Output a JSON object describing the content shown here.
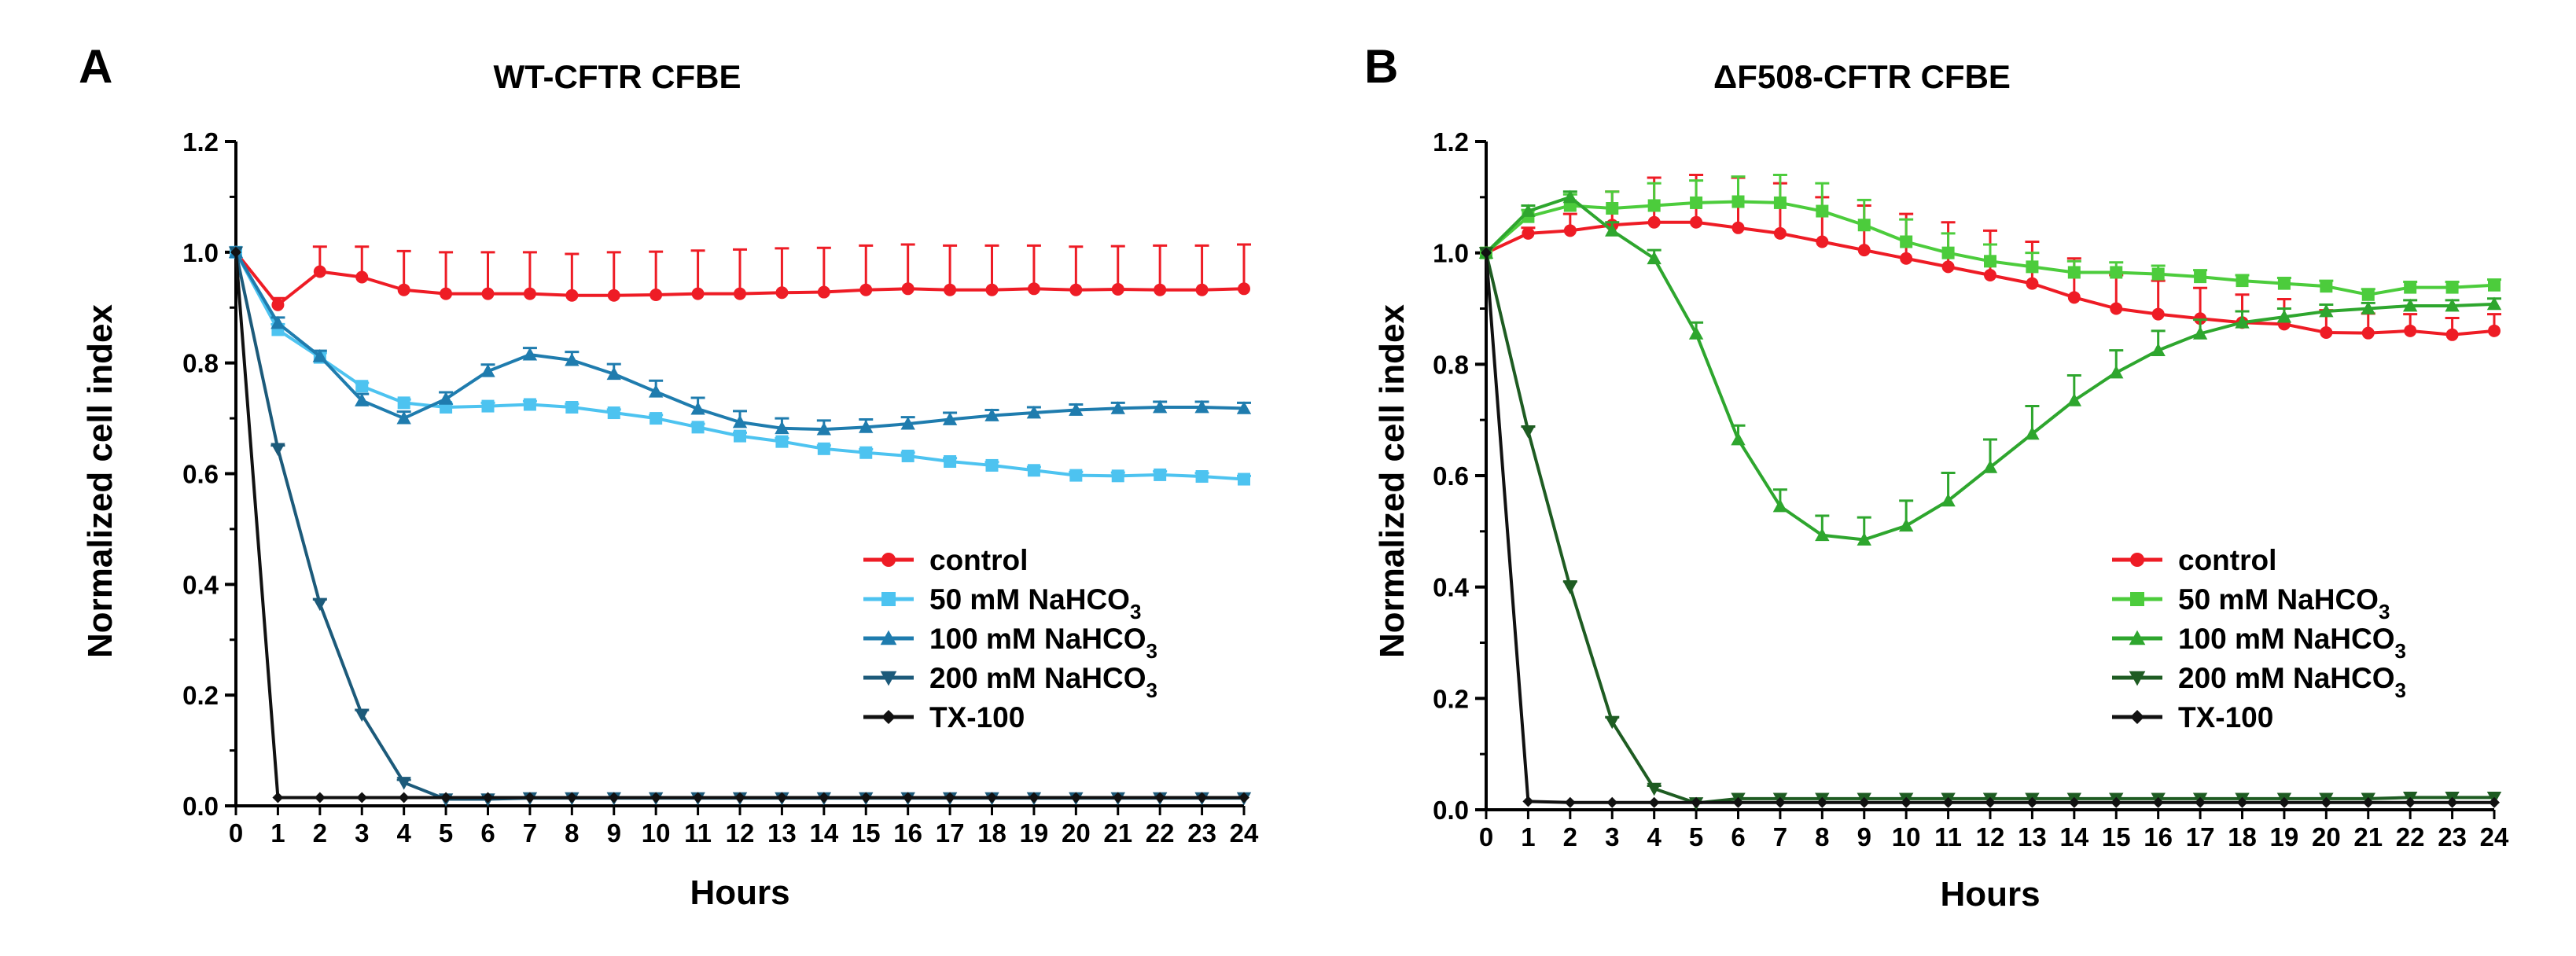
{
  "chart_data": [
    {
      "panel_letter": "A",
      "type": "line",
      "title": "WT-CFTR CFBE",
      "xlabel": "Hours",
      "ylabel": "Normalized cell index",
      "xlim": [
        0,
        24
      ],
      "ylim": [
        0,
        1.2
      ],
      "x": [
        0,
        1,
        2,
        3,
        4,
        5,
        6,
        7,
        8,
        9,
        10,
        11,
        12,
        13,
        14,
        15,
        16,
        17,
        18,
        19,
        20,
        21,
        22,
        23,
        24
      ],
      "x_ticks": [
        "0",
        "1",
        "2",
        "3",
        "4",
        "5",
        "6",
        "7",
        "8",
        "9",
        "10",
        "11",
        "12",
        "13",
        "14",
        "15",
        "16",
        "17",
        "18",
        "19",
        "20",
        "21",
        "22",
        "23",
        "24"
      ],
      "y_ticks": [
        "0.0",
        "0.2",
        "0.4",
        "0.6",
        "0.8",
        "1.0",
        "1.2"
      ],
      "grid": false,
      "legend_position": "bottom-right",
      "series": [
        {
          "name": "control",
          "name_main": "control",
          "name_sub": "",
          "color": "#ee1c25",
          "marker": "circle",
          "values": [
            1.0,
            0.905,
            0.965,
            0.955,
            0.932,
            0.925,
            0.925,
            0.925,
            0.922,
            0.922,
            0.923,
            0.925,
            0.925,
            0.927,
            0.928,
            0.932,
            0.934,
            0.932,
            0.932,
            0.934,
            0.932,
            0.933,
            0.932,
            0.932,
            0.934
          ],
          "errors": [
            0,
            0.012,
            0.045,
            0.055,
            0.07,
            0.075,
            0.075,
            0.075,
            0.075,
            0.078,
            0.078,
            0.078,
            0.08,
            0.08,
            0.08,
            0.08,
            0.08,
            0.08,
            0.08,
            0.078,
            0.078,
            0.078,
            0.08,
            0.08,
            0.08
          ]
        },
        {
          "name": "50 mM NaHCO3",
          "name_main": "50 mM NaHCO",
          "name_sub": "3",
          "color": "#4dc3f0",
          "marker": "square",
          "values": [
            1.0,
            0.86,
            0.81,
            0.758,
            0.728,
            0.72,
            0.722,
            0.725,
            0.72,
            0.71,
            0.7,
            0.684,
            0.668,
            0.658,
            0.645,
            0.638,
            0.632,
            0.622,
            0.615,
            0.606,
            0.597,
            0.596,
            0.598,
            0.595,
            0.59
          ],
          "errors": [
            0,
            0.01,
            0.008,
            0.006,
            0.006,
            0.006,
            0.006,
            0.006,
            0.006,
            0.006,
            0.006,
            0.006,
            0.006,
            0.006,
            0.006,
            0.006,
            0.006,
            0.006,
            0.006,
            0.006,
            0.006,
            0.006,
            0.006,
            0.006,
            0.006
          ]
        },
        {
          "name": "100 mM NaHCO3",
          "name_main": "100 mM NaHCO",
          "name_sub": "3",
          "color": "#1f7cae",
          "marker": "triangle-up",
          "values": [
            1.0,
            0.872,
            0.812,
            0.732,
            0.7,
            0.735,
            0.785,
            0.815,
            0.805,
            0.78,
            0.748,
            0.717,
            0.693,
            0.682,
            0.68,
            0.684,
            0.69,
            0.698,
            0.705,
            0.71,
            0.715,
            0.718,
            0.72,
            0.72,
            0.718
          ],
          "errors": [
            0,
            0.01,
            0.01,
            0.012,
            0.012,
            0.012,
            0.012,
            0.012,
            0.015,
            0.018,
            0.02,
            0.02,
            0.02,
            0.018,
            0.016,
            0.014,
            0.012,
            0.012,
            0.01,
            0.01,
            0.01,
            0.01,
            0.01,
            0.01,
            0.01
          ]
        },
        {
          "name": "200 mM NaHCO3",
          "name_main": "200 mM NaHCO",
          "name_sub": "3",
          "color": "#1c5a7a",
          "marker": "triangle-down",
          "values": [
            1.0,
            0.645,
            0.365,
            0.165,
            0.042,
            0.012,
            0.012,
            0.014,
            0.014,
            0.014,
            0.014,
            0.014,
            0.014,
            0.014,
            0.014,
            0.014,
            0.014,
            0.014,
            0.014,
            0.014,
            0.014,
            0.014,
            0.014,
            0.014,
            0.014
          ],
          "errors": [
            0,
            0.006,
            0.008,
            0.008,
            0.005,
            0.002,
            0.002,
            0.002,
            0.002,
            0.002,
            0.002,
            0.002,
            0.002,
            0.002,
            0.002,
            0.002,
            0.002,
            0.002,
            0.002,
            0.002,
            0.002,
            0.002,
            0.002,
            0.002,
            0.002
          ]
        },
        {
          "name": "TX-100",
          "name_main": "TX-100",
          "name_sub": "",
          "color": "#111111",
          "marker": "diamond",
          "values": [
            1.0,
            0.015,
            0.015,
            0.015,
            0.015,
            0.015,
            0.015,
            0.015,
            0.015,
            0.015,
            0.015,
            0.015,
            0.015,
            0.015,
            0.015,
            0.015,
            0.015,
            0.015,
            0.015,
            0.015,
            0.015,
            0.015,
            0.015,
            0.015,
            0.015
          ],
          "errors": [
            0,
            0,
            0,
            0,
            0,
            0,
            0,
            0,
            0,
            0,
            0,
            0,
            0,
            0,
            0,
            0,
            0,
            0,
            0,
            0,
            0,
            0,
            0,
            0,
            0
          ]
        }
      ]
    },
    {
      "panel_letter": "B",
      "type": "line",
      "title": "ΔF508-CFTR CFBE",
      "xlabel": "Hours",
      "ylabel": "Normalized cell index",
      "xlim": [
        0,
        24
      ],
      "ylim": [
        0,
        1.2
      ],
      "x": [
        0,
        1,
        2,
        3,
        4,
        5,
        6,
        7,
        8,
        9,
        10,
        11,
        12,
        13,
        14,
        15,
        16,
        17,
        18,
        19,
        20,
        21,
        22,
        23,
        24
      ],
      "x_ticks": [
        "0",
        "1",
        "2",
        "3",
        "4",
        "5",
        "6",
        "7",
        "8",
        "9",
        "10",
        "11",
        "12",
        "13",
        "14",
        "15",
        "16",
        "17",
        "18",
        "19",
        "20",
        "21",
        "22",
        "23",
        "24"
      ],
      "y_ticks": [
        "0.0",
        "0.2",
        "0.4",
        "0.6",
        "0.8",
        "1.0",
        "1.2"
      ],
      "grid": false,
      "legend_position": "bottom-right",
      "series": [
        {
          "name": "control",
          "name_main": "control",
          "name_sub": "",
          "color": "#ee1c25",
          "marker": "circle",
          "values": [
            1.0,
            1.035,
            1.04,
            1.05,
            1.055,
            1.055,
            1.045,
            1.035,
            1.02,
            1.005,
            0.99,
            0.975,
            0.96,
            0.945,
            0.92,
            0.9,
            0.89,
            0.882,
            0.875,
            0.872,
            0.857,
            0.856,
            0.86,
            0.853,
            0.86
          ],
          "errors": [
            0,
            0.01,
            0.03,
            0.06,
            0.08,
            0.085,
            0.09,
            0.09,
            0.08,
            0.08,
            0.08,
            0.08,
            0.08,
            0.075,
            0.07,
            0.06,
            0.06,
            0.055,
            0.05,
            0.045,
            0.04,
            0.035,
            0.03,
            0.03,
            0.03
          ]
        },
        {
          "name": "50 mM NaHCO3",
          "name_main": "50 mM NaHCO",
          "name_sub": "3",
          "color": "#4ccc3c",
          "marker": "square",
          "values": [
            1.0,
            1.065,
            1.085,
            1.08,
            1.085,
            1.09,
            1.092,
            1.09,
            1.075,
            1.05,
            1.02,
            1.0,
            0.985,
            0.975,
            0.965,
            0.965,
            0.962,
            0.957,
            0.95,
            0.945,
            0.94,
            0.925,
            0.938,
            0.938,
            0.942
          ],
          "errors": [
            0,
            0.012,
            0.02,
            0.03,
            0.04,
            0.04,
            0.045,
            0.05,
            0.05,
            0.045,
            0.04,
            0.035,
            0.03,
            0.025,
            0.02,
            0.018,
            0.015,
            0.012,
            0.01,
            0.01,
            0.01,
            0.01,
            0.01,
            0.01,
            0.01
          ]
        },
        {
          "name": "100 mM NaHCO3",
          "name_main": "100 mM NaHCO",
          "name_sub": "3",
          "color": "#2ea62e",
          "marker": "triangle-up",
          "values": [
            1.0,
            1.075,
            1.1,
            1.04,
            0.99,
            0.855,
            0.665,
            0.545,
            0.493,
            0.485,
            0.51,
            0.555,
            0.615,
            0.675,
            0.735,
            0.785,
            0.825,
            0.855,
            0.875,
            0.885,
            0.895,
            0.9,
            0.905,
            0.905,
            0.908
          ],
          "errors": [
            0,
            0.01,
            0.01,
            0.015,
            0.015,
            0.02,
            0.025,
            0.03,
            0.035,
            0.04,
            0.045,
            0.05,
            0.05,
            0.05,
            0.045,
            0.04,
            0.035,
            0.025,
            0.02,
            0.015,
            0.012,
            0.01,
            0.01,
            0.01,
            0.01
          ]
        },
        {
          "name": "200 mM NaHCO3",
          "name_main": "200 mM NaHCO",
          "name_sub": "3",
          "color": "#1e5c22",
          "marker": "triangle-down",
          "values": [
            1.0,
            0.68,
            0.4,
            0.158,
            0.038,
            0.012,
            0.02,
            0.02,
            0.02,
            0.02,
            0.02,
            0.02,
            0.02,
            0.02,
            0.02,
            0.02,
            0.02,
            0.02,
            0.02,
            0.02,
            0.02,
            0.02,
            0.022,
            0.022,
            0.022
          ],
          "errors": [
            0,
            0.008,
            0.01,
            0.008,
            0.005,
            0.002,
            0.002,
            0.002,
            0.002,
            0.002,
            0.002,
            0.002,
            0.002,
            0.002,
            0.002,
            0.002,
            0.002,
            0.002,
            0.002,
            0.002,
            0.002,
            0.002,
            0.002,
            0.002,
            0.002
          ]
        },
        {
          "name": "TX-100",
          "name_main": "TX-100",
          "name_sub": "",
          "color": "#111111",
          "marker": "diamond",
          "values": [
            1.0,
            0.015,
            0.013,
            0.013,
            0.013,
            0.013,
            0.013,
            0.013,
            0.013,
            0.013,
            0.013,
            0.013,
            0.013,
            0.013,
            0.013,
            0.013,
            0.013,
            0.013,
            0.013,
            0.013,
            0.013,
            0.013,
            0.013,
            0.013,
            0.013
          ],
          "errors": [
            0,
            0,
            0,
            0,
            0,
            0,
            0,
            0,
            0,
            0,
            0,
            0,
            0,
            0,
            0,
            0,
            0,
            0,
            0,
            0,
            0,
            0,
            0,
            0,
            0
          ]
        }
      ]
    }
  ]
}
